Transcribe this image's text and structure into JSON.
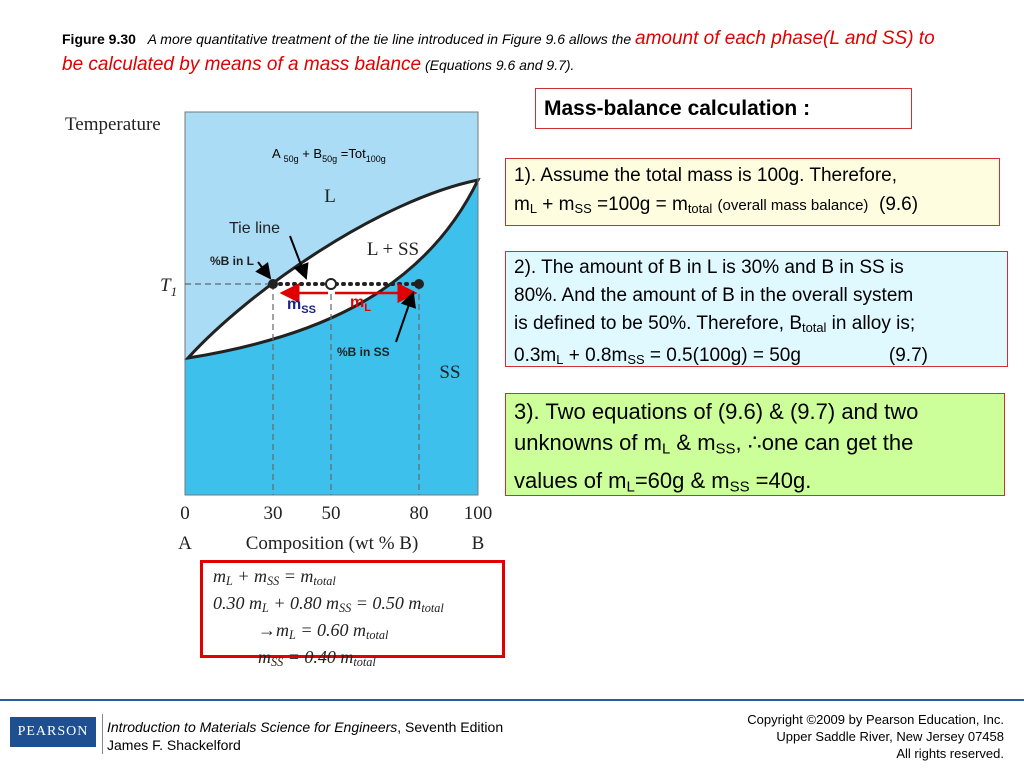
{
  "caption": {
    "label": "Figure 9.30",
    "text": "A more quantitative treatment of the tie line introduced in Figure 9.6 allows the",
    "highlight": "amount of each phase(L and SS) to be calculated by means of a mass balance",
    "note": "(Equations 9.6 and 9.7)."
  },
  "diagram": {
    "y_axis_label": "Temperature",
    "temperature_label": [
      "T",
      "1"
    ],
    "x_ticks": [
      "0",
      "30",
      "50",
      "80",
      "100"
    ],
    "x_axis_label": "Composition (wt % B)",
    "left_component": "A",
    "right_component": "B",
    "regions": [
      "L",
      "L + SS",
      "SS"
    ],
    "tie_line_label": "Tie line",
    "b_in_l": "%B in L",
    "b_in_ss": "%B in SS",
    "m_ss": [
      "m",
      "SS"
    ],
    "m_l": [
      "m",
      "L"
    ],
    "total": [
      "A ",
      "50g",
      " + B",
      "50g",
      " =Tot",
      "100g"
    ]
  },
  "equations": [
    [
      "m",
      "L",
      " + m",
      "SS",
      " = m",
      "total"
    ],
    [
      "0.30 m",
      "L",
      " + 0.80 m",
      "SS",
      " = 0.50 m",
      "total"
    ],
    [
      "→m",
      "L",
      " = 0.60 m",
      "total"
    ],
    [
      "m",
      "SS",
      " = 0.40 m",
      "total"
    ]
  ],
  "title_box": "Mass-balance calculation :",
  "steps": [
    [
      "1). Assume the total mass is 100g.    Therefore,",
      "m",
      "L",
      " + m",
      "SS",
      " =100g = m",
      "total",
      "(overall mass balance)",
      "(9.6)"
    ],
    [
      "2). The amount of B in L is 30% and B in SS is",
      "80%. And the amount of B in the overall system",
      "is defined to be 50%.  Therefore, B",
      "total",
      " in alloy is;",
      "0.3m",
      "L",
      " + 0.8m",
      "SS",
      " = 0.5(100g) = 50g",
      "(9.7)"
    ],
    [
      "3). Two equations of (9.6) & (9.7) and two",
      "unknowns of m",
      "L",
      " &  m",
      "SS",
      ",  ∴one can get the",
      "values of m",
      "L",
      "=60g & m",
      "SS",
      " =40g."
    ]
  ],
  "footer": {
    "publisher": "PEARSON",
    "book_title": "Introduction to Materials Science for Engineers",
    "edition": ", Seventh Edition",
    "author": "James F. Shackelford",
    "copyright": [
      "Copyright ©2009 by Pearson Education, Inc.",
      "Upper Saddle River, New Jersey 07458",
      "All rights reserved."
    ]
  }
}
